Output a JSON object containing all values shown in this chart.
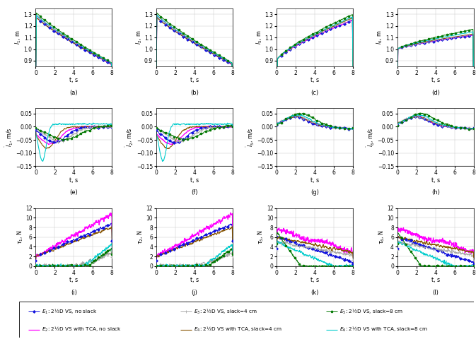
{
  "ylabels_row1": [
    "$l_1$, m",
    "$l_2$, m",
    "$l_5$, m",
    "$l_6$, m"
  ],
  "ylabels_row2": [
    "$\\dot{l}_1$, m/s",
    "$\\dot{l}_2$, m/s",
    "$\\dot{l}_5$, m/s",
    "$\\dot{l}_6$, m/s"
  ],
  "ylabels_row3": [
    "$\\tau_1$, N",
    "$\\tau_2$, N",
    "$\\tau_5$, N",
    "$\\tau_6$, N"
  ],
  "subplot_labels": [
    [
      "(a)",
      "(b)",
      "(c)",
      "(d)"
    ],
    [
      "(e)",
      "(f)",
      "(g)",
      "(h)"
    ],
    [
      "(i)",
      "(j)",
      "(k)",
      "(l)"
    ]
  ],
  "colors": [
    "#1111DD",
    "#FF00FF",
    "#AAAAAA",
    "#885500",
    "#007700",
    "#00CCCC"
  ],
  "markers": [
    "D",
    "none",
    "+",
    "none",
    "o",
    "none"
  ],
  "marker_sizes": [
    2.0,
    0,
    3.0,
    0,
    2.0,
    0
  ],
  "linewidths": [
    0.7,
    0.9,
    0.7,
    0.8,
    0.7,
    0.8
  ],
  "ylim_row1": [
    0.85,
    1.35
  ],
  "ylim_row2": [
    -0.15,
    0.07
  ],
  "ylim_row3": [
    0,
    12
  ],
  "yticks_row1": [
    0.9,
    1.0,
    1.1,
    1.2,
    1.3
  ],
  "yticks_row2": [
    -0.15,
    -0.1,
    -0.05,
    0.0,
    0.05
  ],
  "yticks_row3": [
    0,
    2,
    4,
    6,
    8,
    10,
    12
  ],
  "legend_items": [
    {
      "label": "$E_1$: 2½D VS, no slack",
      "color": "#1111DD",
      "marker": "D",
      "lw": 0.7
    },
    {
      "label": "$E_2$: 2½D VS with TCA, no slack",
      "color": "#FF00FF",
      "marker": "none",
      "lw": 0.9
    },
    {
      "label": "$E_3$: 2½D VS, slack=4 cm",
      "color": "#AAAAAA",
      "marker": "+",
      "lw": 0.7
    },
    {
      "label": "$E_4$: 2½D VS with TCA, slack=4 cm",
      "color": "#885500",
      "marker": "none",
      "lw": 0.8
    },
    {
      "label": "$E_5$: 2½D VS, slack=8 cm",
      "color": "#007700",
      "marker": "o",
      "lw": 0.7
    },
    {
      "label": "$E_6$: 2½D VS with TCA, slack=8 cm",
      "color": "#00CCCC",
      "marker": "none",
      "lw": 0.8
    }
  ]
}
